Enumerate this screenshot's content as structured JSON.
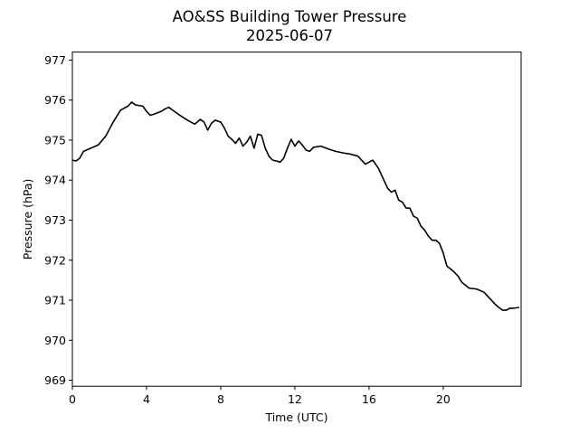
{
  "figure": {
    "title_line1": "AO&SS Building Tower Pressure",
    "title_line2": "2025-06-07"
  },
  "chart_data": {
    "type": "line",
    "title": "AO&SS Building Tower Pressure 2025-06-07",
    "xlabel": "Time (UTC)",
    "ylabel": "Pressure (hPa)",
    "xlim": [
      0,
      24.2
    ],
    "ylim": [
      968.85,
      977.2
    ],
    "xticks": [
      0,
      4,
      8,
      12,
      16,
      20
    ],
    "xtick_labels": [
      "0",
      "4",
      "8",
      "12",
      "16",
      "20"
    ],
    "yticks": [
      969,
      970,
      971,
      972,
      973,
      974,
      975,
      976,
      977
    ],
    "ytick_labels": [
      "969",
      "970",
      "971",
      "972",
      "973",
      "974",
      "975",
      "976",
      "977"
    ],
    "grid": false,
    "line_color": "#000000",
    "series": [
      {
        "x": [
          0,
          0.2,
          0.4,
          0.6,
          1.0,
          1.4,
          1.8,
          2.2,
          2.6,
          3.0,
          3.2,
          3.4,
          3.8,
          4.0,
          4.2,
          4.4,
          4.8,
          5.0,
          5.2,
          5.4,
          5.8,
          6.2,
          6.6,
          6.9,
          7.1,
          7.3,
          7.5,
          7.7,
          8.0,
          8.2,
          8.4,
          8.6,
          8.8,
          9.0,
          9.2,
          9.4,
          9.6,
          9.8,
          10.0,
          10.2,
          10.4,
          10.6,
          10.8,
          11.0,
          11.2,
          11.4,
          11.6,
          11.8,
          12.0,
          12.2,
          12.4,
          12.6,
          12.8,
          13.0,
          13.4,
          13.8,
          14.2,
          14.6,
          15.0,
          15.4,
          15.8,
          16.0,
          16.2,
          16.5,
          16.8,
          17.0,
          17.2,
          17.4,
          17.6,
          17.8,
          18.0,
          18.2,
          18.4,
          18.6,
          18.8,
          19.0,
          19.2,
          19.4,
          19.6,
          19.8,
          20.0,
          20.2,
          20.4,
          20.6,
          20.8,
          21.0,
          21.4,
          21.8,
          22.2,
          22.6,
          22.8,
          23.0,
          23.2,
          23.4,
          23.6,
          23.8,
          24.1
        ],
        "y": [
          974.5,
          974.48,
          974.55,
          974.72,
          974.8,
          974.88,
          975.1,
          975.45,
          975.75,
          975.85,
          975.95,
          975.88,
          975.85,
          975.72,
          975.62,
          975.65,
          975.72,
          975.78,
          975.82,
          975.75,
          975.62,
          975.5,
          975.4,
          975.52,
          975.45,
          975.25,
          975.42,
          975.5,
          975.45,
          975.3,
          975.1,
          975.02,
          974.92,
          975.05,
          974.85,
          974.95,
          975.1,
          974.8,
          975.15,
          975.12,
          974.8,
          974.6,
          974.5,
          974.48,
          974.45,
          974.55,
          974.8,
          975.02,
          974.85,
          974.98,
          974.88,
          974.75,
          974.72,
          974.82,
          974.85,
          974.78,
          974.72,
          974.68,
          974.65,
          974.6,
          974.4,
          974.45,
          974.5,
          974.3,
          974.0,
          973.8,
          973.7,
          973.75,
          973.5,
          973.45,
          973.3,
          973.3,
          973.1,
          973.05,
          972.85,
          972.75,
          972.6,
          972.5,
          972.5,
          972.42,
          972.18,
          971.85,
          971.78,
          971.7,
          971.6,
          971.45,
          971.3,
          971.28,
          971.2,
          971.0,
          970.9,
          970.82,
          970.75,
          970.75,
          970.8,
          970.8,
          970.82
        ]
      }
    ]
  }
}
